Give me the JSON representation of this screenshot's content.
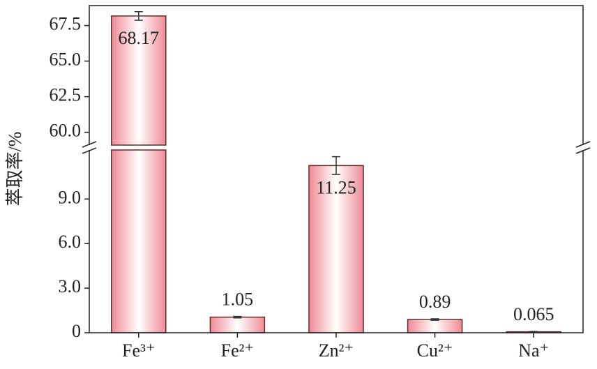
{
  "chart_data": {
    "type": "bar",
    "y_label": "萃取率/%",
    "categories": [
      "Fe³⁺",
      "Fe²⁺",
      "Zn²⁺",
      "Cu²⁺",
      "Na⁺"
    ],
    "values": [
      68.17,
      1.05,
      11.25,
      0.89,
      0.065
    ],
    "errors": [
      0.3,
      0.05,
      0.6,
      0.05,
      0.02
    ],
    "color": "#f08a96",
    "y_segments": [
      {
        "ylim": [
          0,
          12.3
        ],
        "yticks": [
          0,
          {
            "value": 3,
            "label": "3.0"
          },
          {
            "value": 6,
            "label": "6.0"
          },
          {
            "value": 9,
            "label": "9.0"
          }
        ]
      },
      {
        "ylim": [
          59.1,
          68.9
        ],
        "yticks": [
          {
            "value": 60,
            "label": "60.0"
          },
          {
            "value": 62.5,
            "label": "62.5"
          },
          {
            "value": 65,
            "label": "65.0"
          },
          {
            "value": 67.5,
            "label": "67.5"
          }
        ]
      }
    ]
  }
}
